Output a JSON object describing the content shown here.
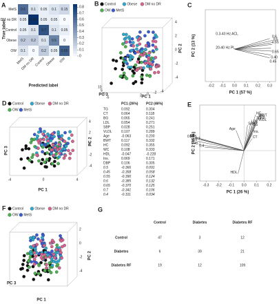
{
  "panels": {
    "A": {
      "letter": "A",
      "y_label": "True label",
      "x_label": "Predicted label",
      "labels": [
        "MetS",
        "DM no DR",
        "Control",
        "Obese",
        "OW"
      ],
      "matrix": [
        [
          0.6,
          0.1,
          0.05,
          0.1,
          0.15
        ],
        [
          0.05,
          0.85,
          0.05,
          0.05,
          0
        ],
        [
          0.05,
          0.1,
          0.7,
          0.1,
          0.05
        ],
        [
          0.2,
          0.2,
          0.1,
          0.5,
          0
        ],
        [
          0.1,
          0,
          0.2,
          0.05,
          0.65
        ]
      ],
      "colorbar_ticks": [
        0,
        0.1,
        0.2,
        0.3,
        0.4,
        0.5,
        0.6,
        0.7,
        0.8
      ]
    },
    "B": {
      "letter": "B",
      "legend": [
        "Control",
        "Obese",
        "DM no DR",
        "OW",
        "MetS"
      ],
      "colors": [
        "#111111",
        "#2fa8cc",
        "#d4648f",
        "#4caf50",
        "#3b5bd0"
      ],
      "axes": [
        "PC 1",
        "PC 2",
        "PC 3"
      ],
      "pc2_ticks": [
        4,
        2,
        0,
        -2,
        -4
      ],
      "pc3_ticks": [
        10,
        5,
        0,
        -5
      ],
      "pc1_ticks": [
        2,
        0,
        -2,
        -4
      ]
    },
    "C": {
      "letter": "C",
      "x_label": "PC 1 (57 %)",
      "y_label": "PC 2 (13 %)",
      "xlim": [
        -0.25,
        0.35
      ],
      "xticks": [
        -0.2,
        -0.1,
        {
          "value": 0,
          "label": "0.0"
        },
        0.1,
        0.2,
        0.3
      ],
      "arrow_labels": [
        "0.3-40 Hz ACL",
        "0.6",
        "0.5",
        "0.55",
        "20-40 Hz PL",
        "0.65",
        "0.40",
        "0.45"
      ]
    },
    "D": {
      "letter": "D",
      "legend": [
        "Control",
        "Obese",
        "DM no DR",
        "OW",
        "MetS"
      ],
      "colors": [
        "#111111",
        "#2fa8cc",
        "#d4648f",
        "#4caf50",
        "#3b5bd0"
      ],
      "axes": [
        "PC 1",
        "PC 2",
        "PC 3"
      ],
      "pc2_ticks": [
        4,
        2,
        0,
        -2,
        -4
      ],
      "pc1_ticks": [
        -4,
        0,
        4
      ],
      "table": {
        "header": [
          "PC1 (26%)",
          "PC2 (46%)"
        ],
        "rows": [
          [
            "TG",
            "0.092",
            "0.304"
          ],
          [
            "CT",
            "0.064",
            "0.118"
          ],
          [
            "BG",
            "0.065",
            "0.241"
          ],
          [
            "LDL",
            "0.054",
            "0.271"
          ],
          [
            "SBP",
            "0.028",
            "0.251"
          ],
          [
            "VLDL",
            "0.107",
            "0.289"
          ],
          [
            "Age",
            "-0.063",
            "0.200"
          ],
          [
            "BWT",
            "0.117",
            "0.332"
          ],
          [
            "HC",
            "0.092",
            "0.355"
          ],
          [
            "WC",
            "0.108",
            "0.333"
          ],
          [
            "HDL",
            "-0.047",
            "-0.228"
          ],
          [
            "Ins.",
            "0.069",
            "0.171"
          ],
          [
            "DBP",
            "0.106",
            "0.305"
          ],
          [
            "0.5",
            "-0.366",
            "0.091"
          ],
          [
            "0.45",
            "-0.358",
            "0.058"
          ],
          [
            "0.55",
            "-0.390",
            "0.124"
          ],
          [
            "0.6",
            "-0.385",
            "0.132"
          ],
          [
            "0.65",
            "-0.370",
            "0.125"
          ],
          [
            "0.7",
            "-0.341",
            "0.106"
          ],
          [
            "0.4",
            "-0.311",
            "0.034"
          ]
        ]
      }
    },
    "E": {
      "letter": "E",
      "x_label": "PC 1 (26 %)",
      "y_label": "PC 2 (46 %)",
      "xlim": [
        -0.35,
        0.25
      ],
      "ylim": [
        -0.3,
        0.45
      ],
      "xticks": [
        -0.3,
        -0.2,
        -0.1,
        {
          "value": 0,
          "label": "0.0"
        },
        0.1,
        0.2
      ]
    },
    "F": {
      "letter": "F",
      "legend": [
        "Control",
        "Obese",
        "DM no DR",
        "OW",
        "MetS"
      ],
      "colors": [
        "#111111",
        "#2fa8cc",
        "#d4648f",
        "#4caf50",
        "#3b5bd0"
      ],
      "axes": [
        "PC 1",
        "PC 2",
        "PC 3"
      ],
      "pc2_ticks": [
        2,
        0,
        -2,
        -4
      ]
    },
    "G": {
      "letter": "G",
      "header": [
        "Control",
        "Diabetes",
        "Diabetes RF"
      ],
      "rows": [
        {
          "label": "Control",
          "values": [
            "47",
            "3",
            "12"
          ]
        },
        {
          "label": "Diabetes",
          "values": [
            "6",
            "39",
            "21"
          ]
        },
        {
          "label": "Diabetes RF",
          "values": [
            "19",
            "12",
            "109"
          ]
        }
      ]
    }
  }
}
